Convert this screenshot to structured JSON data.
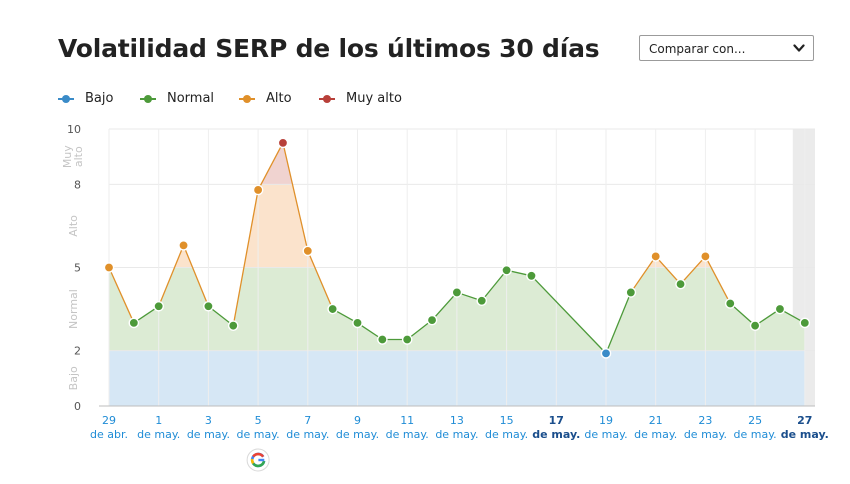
{
  "title": "Volatilidad SERP de los últimos 30 días",
  "compare": {
    "label": "Comparar con...",
    "icon": "chevron-down-icon"
  },
  "legend": [
    {
      "label": "Bajo",
      "color": "#3a8bc8"
    },
    {
      "label": "Normal",
      "color": "#4d9a3a"
    },
    {
      "label": "Alto",
      "color": "#e0902a"
    },
    {
      "label": "Muy alto",
      "color": "#b8403a"
    }
  ],
  "colors": {
    "bajo_band": "#d6e7f5",
    "normal_fill": "#dcebd4",
    "alto_fill": "#fbe3cc",
    "muy_alto_fill": "#f0d3d0",
    "line": "#4d9a3a",
    "today_shade": "#ebebeb"
  },
  "chart_data": {
    "type": "line",
    "ylim": [
      0,
      10
    ],
    "yticks": [
      0,
      2,
      5,
      8,
      10
    ],
    "bands": [
      {
        "label": "Bajo",
        "from": 0,
        "to": 2
      },
      {
        "label": "Normal",
        "from": 2,
        "to": 5
      },
      {
        "label": "Alto",
        "from": 5,
        "to": 8
      },
      {
        "label": "Muy alto",
        "from": 8,
        "to": 10
      }
    ],
    "x": [
      "29 abr",
      "30 abr",
      "1 may",
      "2 may",
      "3 may",
      "4 may",
      "5 may",
      "6 may",
      "7 may",
      "8 may",
      "9 may",
      "10 may",
      "11 may",
      "12 may",
      "13 may",
      "14 may",
      "15 may",
      "16 may",
      "19 may",
      "20 may",
      "21 may",
      "22 may",
      "23 may",
      "24 may",
      "25 may",
      "26 may",
      "27 may"
    ],
    "x_index": [
      0,
      1,
      2,
      3,
      4,
      5,
      6,
      7,
      8,
      9,
      10,
      11,
      12,
      13,
      14,
      15,
      16,
      17,
      20,
      21,
      22,
      23,
      24,
      25,
      26,
      27,
      28
    ],
    "values": [
      5.0,
      3.0,
      3.6,
      5.8,
      3.6,
      2.9,
      7.8,
      9.5,
      5.6,
      3.5,
      3.0,
      2.4,
      2.4,
      3.1,
      4.1,
      3.8,
      4.9,
      4.7,
      1.9,
      4.1,
      5.4,
      4.4,
      5.4,
      3.7,
      2.9,
      3.5,
      3.0
    ],
    "levels": [
      "alto",
      "normal",
      "normal",
      "alto",
      "normal",
      "normal",
      "alto",
      "muy_alto",
      "alto",
      "normal",
      "normal",
      "normal",
      "normal",
      "normal",
      "normal",
      "normal",
      "normal",
      "normal",
      "bajo",
      "normal",
      "alto",
      "normal",
      "alto",
      "normal",
      "normal",
      "normal",
      "normal"
    ],
    "xtick_labels": [
      {
        "day": "29",
        "month": "de abr.",
        "index": 0,
        "future": false
      },
      {
        "day": "1",
        "month": "de may.",
        "index": 2,
        "future": false
      },
      {
        "day": "3",
        "month": "de may.",
        "index": 4,
        "future": false
      },
      {
        "day": "5",
        "month": "de may.",
        "index": 6,
        "future": false
      },
      {
        "day": "7",
        "month": "de may.",
        "index": 8,
        "future": false
      },
      {
        "day": "9",
        "month": "de may.",
        "index": 10,
        "future": false
      },
      {
        "day": "11",
        "month": "de may.",
        "index": 12,
        "future": false
      },
      {
        "day": "13",
        "month": "de may.",
        "index": 14,
        "future": false
      },
      {
        "day": "15",
        "month": "de may.",
        "index": 16,
        "future": false
      },
      {
        "day": "17",
        "month": "de may.",
        "index": 18,
        "future": true
      },
      {
        "day": "19",
        "month": "de may.",
        "index": 20,
        "future": false
      },
      {
        "day": "21",
        "month": "de may.",
        "index": 22,
        "future": false
      },
      {
        "day": "23",
        "month": "de may.",
        "index": 24,
        "future": false
      },
      {
        "day": "25",
        "month": "de may.",
        "index": 26,
        "future": false
      },
      {
        "day": "27",
        "month": "de may.",
        "index": 28,
        "future": true
      }
    ],
    "google_update_index": 6,
    "google_update_icon": "google-icon"
  }
}
